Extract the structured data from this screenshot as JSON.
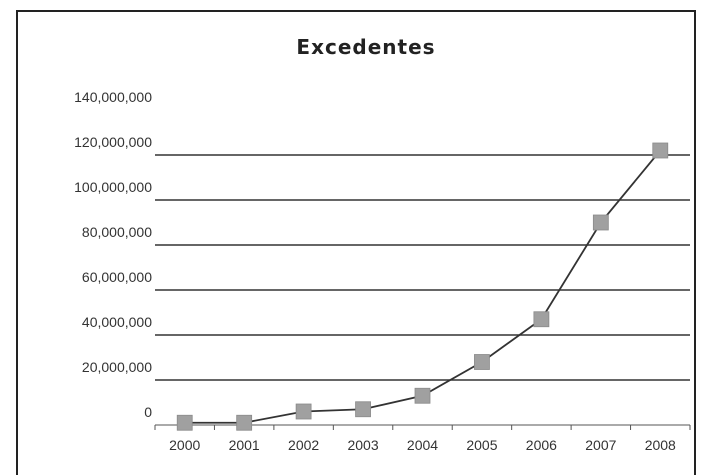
{
  "chart_data": {
    "type": "line",
    "title": "Excedentes",
    "xlabel": "",
    "ylabel": "",
    "categories": [
      "2000",
      "2001",
      "2002",
      "2003",
      "2004",
      "2005",
      "2006",
      "2007",
      "2008"
    ],
    "series": [
      {
        "values": [
          1000000,
          1000000,
          6000000,
          7000000,
          13000000,
          28000000,
          47000000,
          90000000,
          122000000
        ],
        "color": "#a0a0a0",
        "line_color": "#333333"
      }
    ],
    "ylim": [
      0,
      140000000
    ],
    "yticks": [
      0,
      20000000,
      40000000,
      60000000,
      80000000,
      100000000,
      120000000,
      140000000
    ],
    "ytick_labels": [
      "0",
      "20,000,000",
      "40,000,000",
      "60,000,000",
      "80,000,000",
      "100,000,000",
      "120,000,000",
      "140,000,000"
    ],
    "grid": true,
    "legend": "none"
  }
}
